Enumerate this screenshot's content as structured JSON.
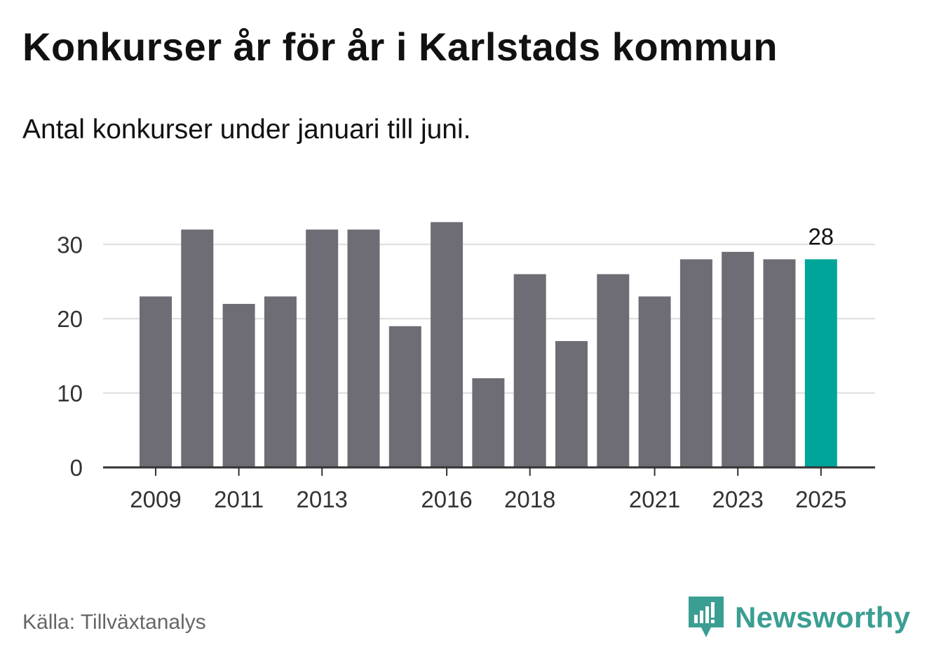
{
  "header": {
    "title": "Konkurser år för år i Karlstads kommun",
    "subtitle": "Antal konkurser under januari till juni."
  },
  "footer": {
    "source": "Källa: Tillväxtanalys",
    "brand": "Newsworthy",
    "brand_icon": "newsworthy-logo-icon"
  },
  "colors": {
    "bar": "#6e6d75",
    "highlight": "#00a59a",
    "grid": "#dddddd",
    "axis": "#333333",
    "brand": "#3b9e93"
  },
  "chart_data": {
    "type": "bar",
    "title": "Konkurser år för år i Karlstads kommun",
    "subtitle": "Antal konkurser under januari till juni.",
    "xlabel": "",
    "ylabel": "",
    "categories": [
      "2009",
      "2010",
      "2011",
      "2012",
      "2013",
      "2014",
      "2015",
      "2016",
      "2017",
      "2018",
      "2019",
      "2020",
      "2021",
      "2022",
      "2023",
      "2024",
      "2025"
    ],
    "values": [
      23,
      32,
      22,
      23,
      32,
      32,
      19,
      33,
      12,
      26,
      17,
      26,
      23,
      28,
      29,
      28,
      28
    ],
    "highlight_category": "2025",
    "highlight_label": "28",
    "x_tick_labels": [
      "2009",
      "2011",
      "2013",
      "2016",
      "2018",
      "2021",
      "2023",
      "2025"
    ],
    "y_ticks": [
      0,
      10,
      20,
      30
    ],
    "ylim": [
      0,
      34
    ],
    "grid": true,
    "legend": "none"
  }
}
